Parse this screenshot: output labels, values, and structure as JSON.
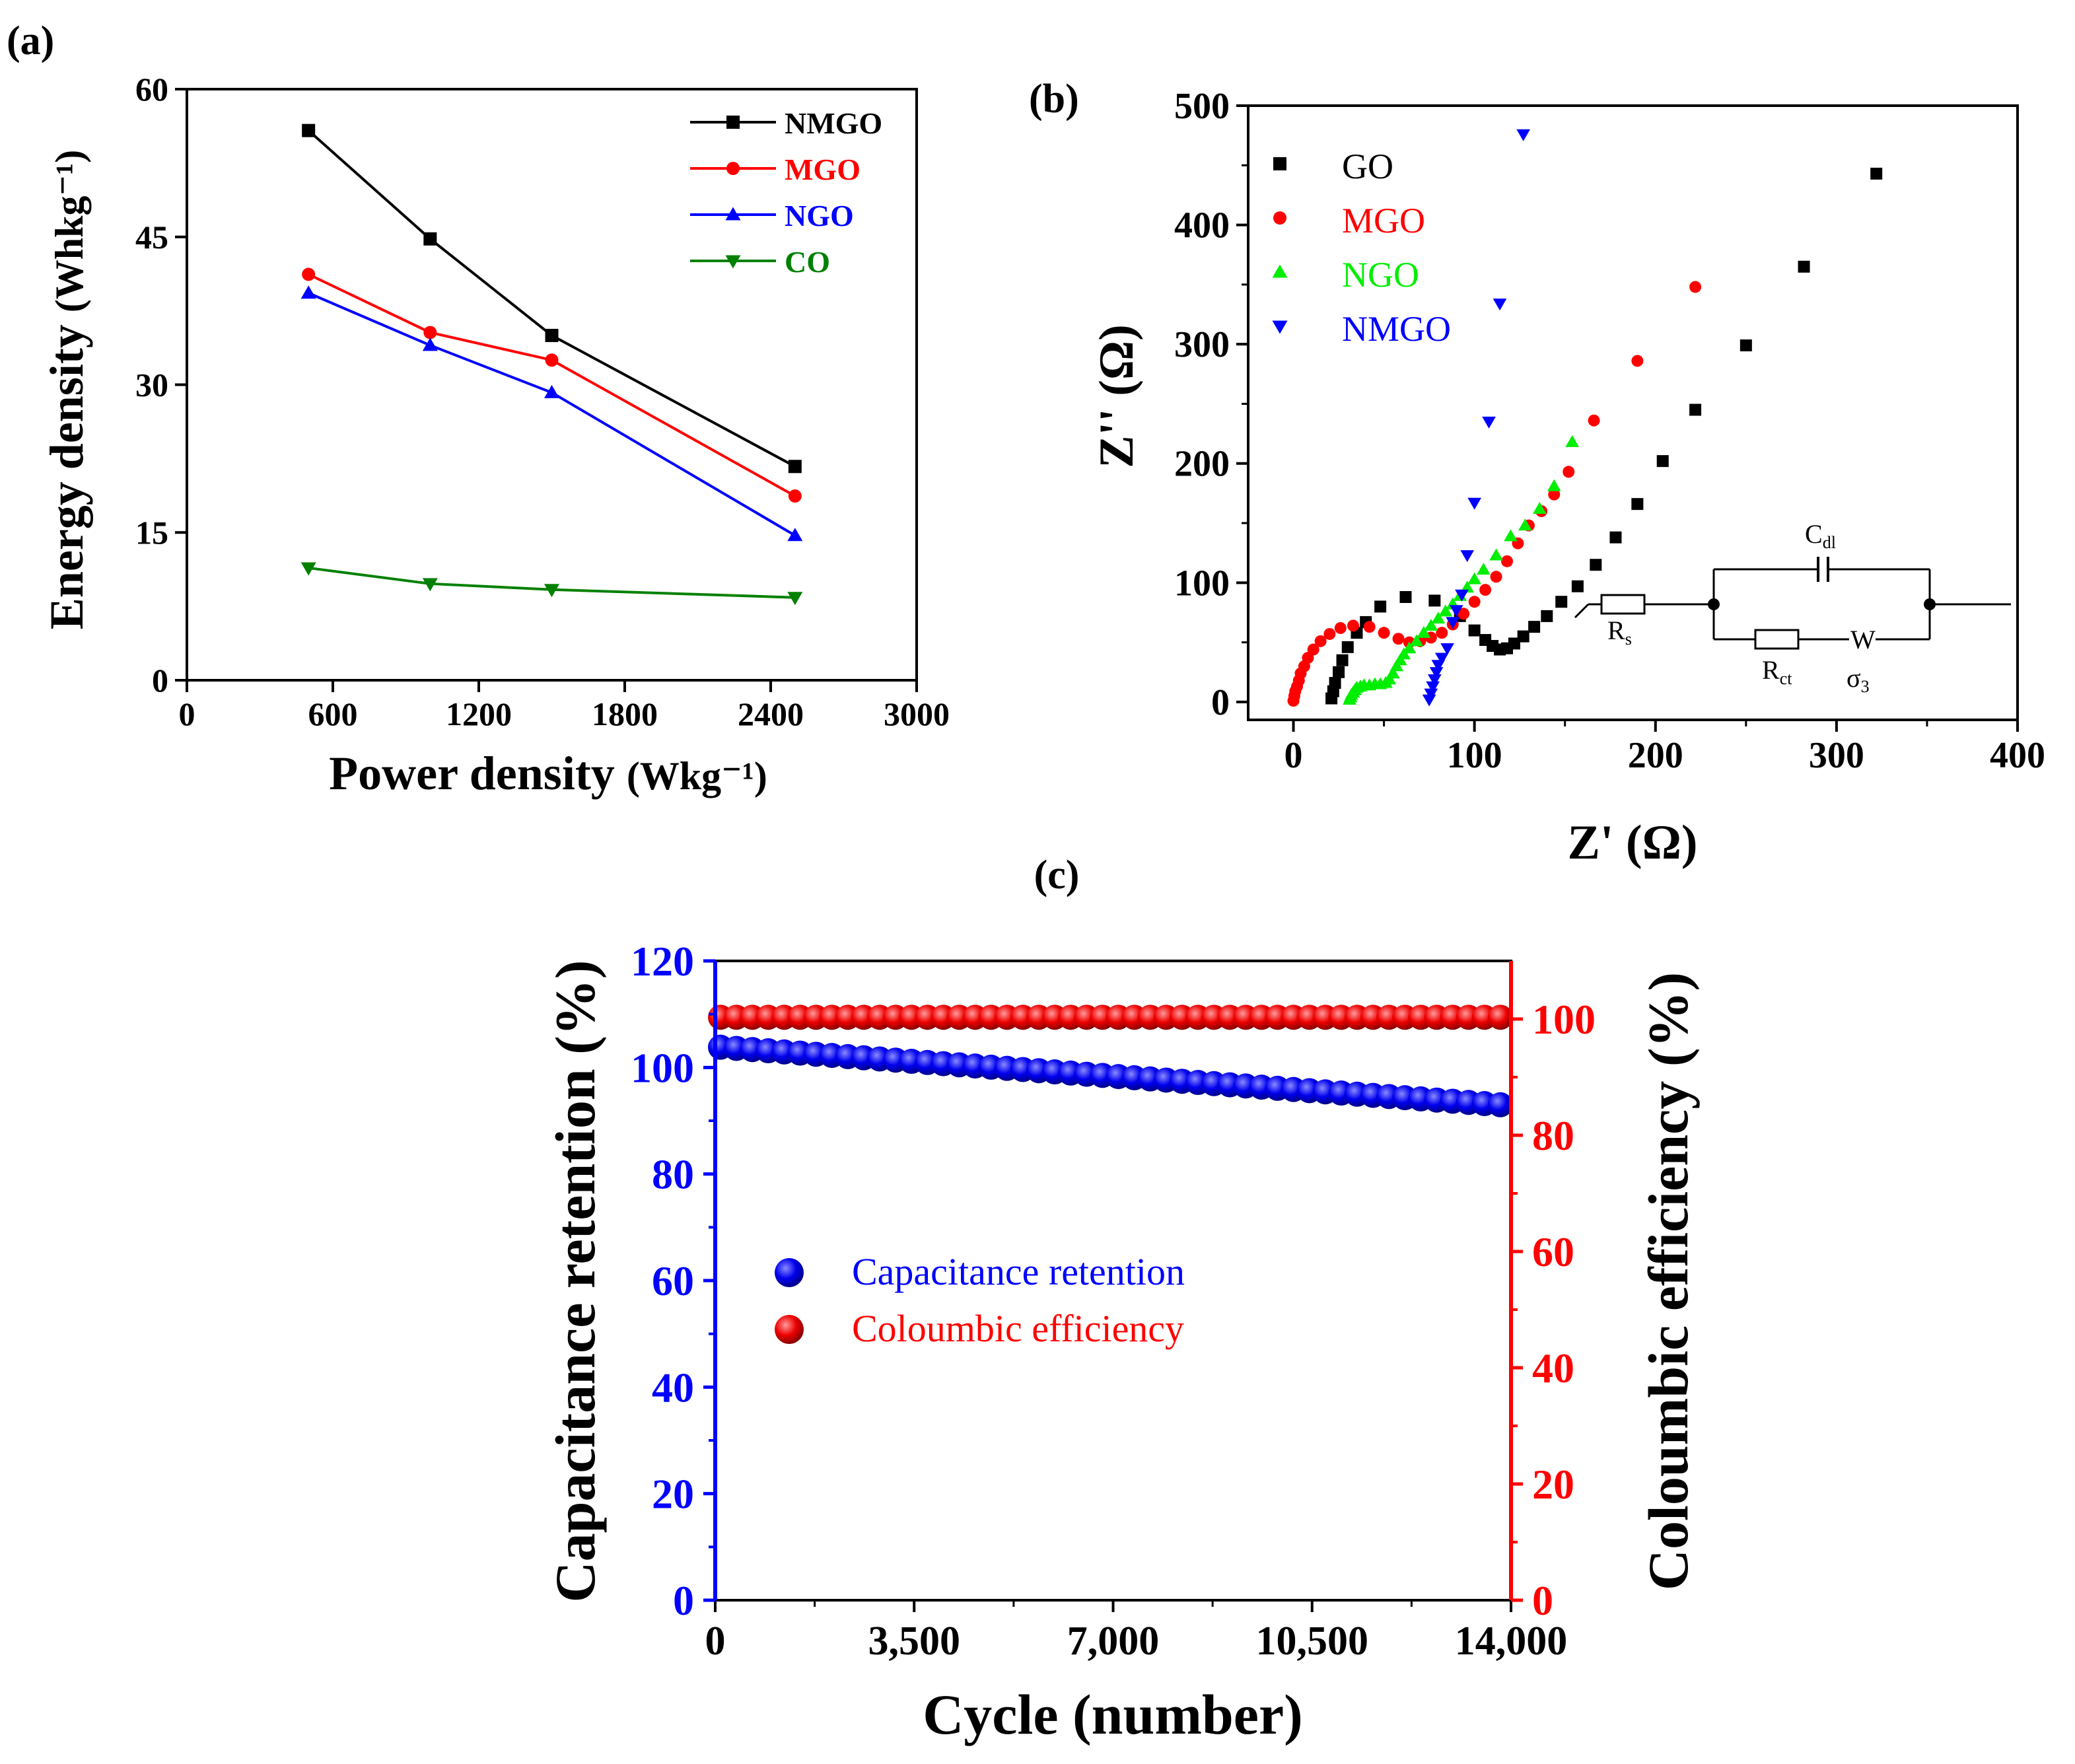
{
  "chart_data": [
    {
      "panel": "(a)",
      "type": "line",
      "xlabel": "Power density (Wkg⁻¹)",
      "ylabel": "Energy density (Whkg⁻¹)",
      "xlim": [
        0,
        3000
      ],
      "ylim": [
        0,
        60
      ],
      "xticks": [
        "0",
        "600",
        "1200",
        "1800",
        "2400",
        "3000"
      ],
      "yticks": [
        "0",
        "15",
        "30",
        "45",
        "60"
      ],
      "legend_position": "top-right",
      "series": [
        {
          "name": "NMGO",
          "color": "#000000",
          "marker": "square",
          "x": [
            500,
            1000,
            1500,
            2500
          ],
          "values": [
            55.8,
            44.8,
            35.0,
            21.7
          ]
        },
        {
          "name": "MGO",
          "color": "#ff0000",
          "marker": "circle",
          "x": [
            500,
            1000,
            1500,
            2500
          ],
          "values": [
            41.2,
            35.3,
            32.5,
            18.7
          ]
        },
        {
          "name": "NGO",
          "color": "#0000ff",
          "marker": "triangle-up",
          "x": [
            500,
            1000,
            1500,
            2500
          ],
          "values": [
            39.3,
            34.0,
            29.2,
            14.7
          ]
        },
        {
          "name": "CO",
          "color": "#008000",
          "marker": "triangle-down",
          "x": [
            500,
            1000,
            1500,
            2500
          ],
          "values": [
            11.4,
            9.8,
            9.2,
            8.4
          ]
        }
      ]
    },
    {
      "panel": "(b)",
      "type": "scatter",
      "xlabel": "Z' (Ω)",
      "ylabel": "Z'' (Ω)",
      "xlim": [
        -25,
        400
      ],
      "ylim": [
        -15,
        500
      ],
      "xticks": [
        "0",
        "100",
        "200",
        "300",
        "400"
      ],
      "yticks": [
        "0",
        "100",
        "200",
        "300",
        "400",
        "500"
      ],
      "legend_position": "top-left",
      "series": [
        {
          "name": "GO",
          "color": "#000000",
          "marker": "square",
          "x": [
            21,
            22,
            23,
            25,
            27,
            30,
            35,
            40,
            48,
            62,
            78,
            92,
            100,
            106,
            110,
            114,
            118,
            122,
            127,
            133,
            140,
            148,
            157,
            167,
            178,
            190,
            204,
            222,
            250,
            282,
            322
          ],
          "y": [
            3,
            9,
            16,
            25,
            35,
            46,
            58,
            67,
            80,
            88,
            85,
            72,
            60,
            52,
            47,
            44,
            45,
            49,
            55,
            63,
            72,
            84,
            97,
            115,
            138,
            166,
            202,
            245,
            299,
            365,
            443
          ]
        },
        {
          "name": "MGO",
          "color": "#ff0000",
          "marker": "circle",
          "x": [
            0,
            0.5,
            1,
            2,
            3,
            4,
            6,
            8,
            11,
            15,
            20,
            26,
            33,
            42,
            50,
            58,
            64,
            70,
            76,
            82,
            88,
            94,
            100,
            106,
            112,
            118,
            124,
            130,
            137,
            144,
            152,
            166,
            190,
            222
          ],
          "y": [
            1,
            5,
            9,
            13,
            18,
            24,
            30,
            37,
            44,
            51,
            57,
            62,
            64,
            63,
            58,
            53,
            50,
            51,
            54,
            58,
            65,
            74,
            84,
            94,
            105,
            118,
            133,
            148,
            160,
            174,
            193,
            236,
            286,
            348
          ]
        },
        {
          "name": "NGO",
          "color": "#00ee00",
          "marker": "triangle-up",
          "x": [
            31,
            31.5,
            32,
            33,
            34,
            35,
            37,
            39,
            42,
            45,
            48,
            51,
            53,
            55,
            57,
            59,
            61,
            64,
            68,
            72,
            76,
            80,
            84,
            88,
            92,
            96,
            100,
            105,
            112,
            120,
            128,
            136,
            144,
            154
          ],
          "y": [
            2,
            4,
            6,
            8,
            10,
            12,
            13,
            14,
            14,
            15,
            15,
            16,
            19,
            24,
            30,
            35,
            40,
            45,
            51,
            58,
            64,
            70,
            76,
            82,
            89,
            96,
            103,
            111,
            123,
            139,
            148,
            162,
            181,
            218
          ]
        },
        {
          "name": "NMGO",
          "color": "#0000ff",
          "marker": "triangle-down",
          "x": [
            75,
            76,
            77,
            78,
            79,
            80,
            82,
            85,
            88,
            90,
            93,
            96,
            100,
            108,
            114,
            127
          ],
          "y": [
            2,
            7,
            13,
            19,
            25,
            31,
            37,
            45,
            67,
            77,
            90,
            123,
            167,
            235,
            334,
            476
          ]
        }
      ],
      "circuit": {
        "Rs": "R",
        "Rs_sub": "s",
        "Cdl": "C",
        "Cdl_sub": "dl",
        "Rct": "R",
        "Rct_sub": "ct",
        "W": "W",
        "sigma": "σ",
        "sigma_sub": "3"
      }
    },
    {
      "panel": "(c)",
      "type": "scatter",
      "xlabel": "Cycle (number)",
      "ylabel_left": "Capacitance retention (%)",
      "ylabel_right": "Coloumbic efficiency (%)",
      "xlim": [
        0,
        14000
      ],
      "ylim_left": [
        0,
        120
      ],
      "ylim_right": [
        0,
        110
      ],
      "xticks": [
        "0",
        "3,500",
        "7,000",
        "10,500",
        "14,000"
      ],
      "yticks_left": [
        "0",
        "20",
        "40",
        "60",
        "80",
        "100",
        "120"
      ],
      "yticks_right": [
        "0",
        "20",
        "40",
        "60",
        "80",
        "100"
      ],
      "legend_position": "center-left",
      "series": [
        {
          "name": "Capacitance retention",
          "color": "#0000ff",
          "axis": "left",
          "x_start": 0,
          "x_step": 280,
          "count": 50,
          "y_start": 103.8,
          "y_end": 93.0
        },
        {
          "name": "Coloumbic efficiency",
          "color": "#ff0000",
          "axis": "right",
          "x_start": 0,
          "x_step": 280,
          "count": 50,
          "y_start": 100.3,
          "y_end": 100.3
        }
      ]
    }
  ],
  "labels": {
    "a": {
      "panel": "(a)",
      "xlabel_main": "Power density ",
      "xlabel_unit": "(Wkg⁻¹)",
      "ylabel_main": "Energy density ",
      "ylabel_unit": "(Whkg⁻¹)"
    },
    "b": {
      "panel": "(b)",
      "xlabel": "Z' (Ω)",
      "ylabel": "Z'' (Ω)"
    },
    "c": {
      "panel": "(c)",
      "xlabel": "Cycle (number)",
      "ylabel_left": "Capacitance retention (%)",
      "ylabel_right": "Coloumbic efficiency (%)"
    }
  }
}
